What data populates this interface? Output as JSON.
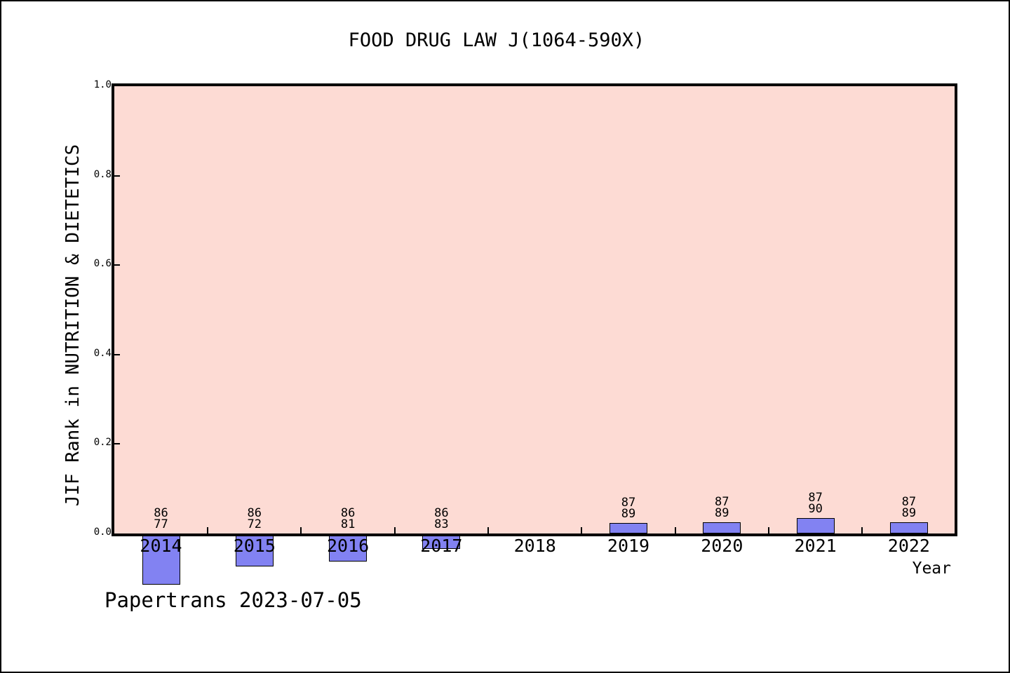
{
  "footer": {
    "text": "Papertrans 2023-07-05"
  },
  "chart_data": {
    "type": "bar",
    "title": "FOOD DRUG LAW J(1064-590X)",
    "xlabel": "Year",
    "ylabel": "JIF Rank in NUTRITION & DIETETICS",
    "ylim": [
      0.0,
      1.0
    ],
    "grid": "off",
    "legend": "none",
    "plot_bg_color": "#fddbd4",
    "bar_color": "#8282f2",
    "bar_edge_color": "#000000",
    "yticks": [
      {
        "label": "0.0",
        "value": 0.0,
        "mark": false
      },
      {
        "label": "0.2",
        "value": 0.2,
        "mark": true
      },
      {
        "label": "0.4",
        "value": 0.4,
        "mark": true
      },
      {
        "label": "0.6",
        "value": 0.6,
        "mark": true
      },
      {
        "label": "0.8",
        "value": 0.8,
        "mark": true
      },
      {
        "label": "1.0",
        "value": 1.0,
        "mark": false
      }
    ],
    "categories": [
      "2014",
      "2015",
      "2016",
      "2017",
      "2018",
      "2019",
      "2020",
      "2021",
      "2022"
    ],
    "bars": [
      {
        "year": "2014",
        "label_top": "86",
        "label_bottom": "77",
        "value": -0.114
      },
      {
        "year": "2015",
        "label_top": "86",
        "label_bottom": "72",
        "value": -0.073
      },
      {
        "year": "2016",
        "label_top": "86",
        "label_bottom": "81",
        "value": -0.062
      },
      {
        "year": "2017",
        "label_top": "86",
        "label_bottom": "83",
        "value": -0.035
      },
      {
        "year": "2018",
        "label_top": null,
        "label_bottom": null,
        "value": null
      },
      {
        "year": "2019",
        "label_top": "87",
        "label_bottom": "89",
        "value": 0.023
      },
      {
        "year": "2020",
        "label_top": "87",
        "label_bottom": "89",
        "value": 0.025
      },
      {
        "year": "2021",
        "label_top": "87",
        "label_bottom": "90",
        "value": 0.034
      },
      {
        "year": "2022",
        "label_top": "87",
        "label_bottom": "89",
        "value": 0.025
      }
    ]
  }
}
